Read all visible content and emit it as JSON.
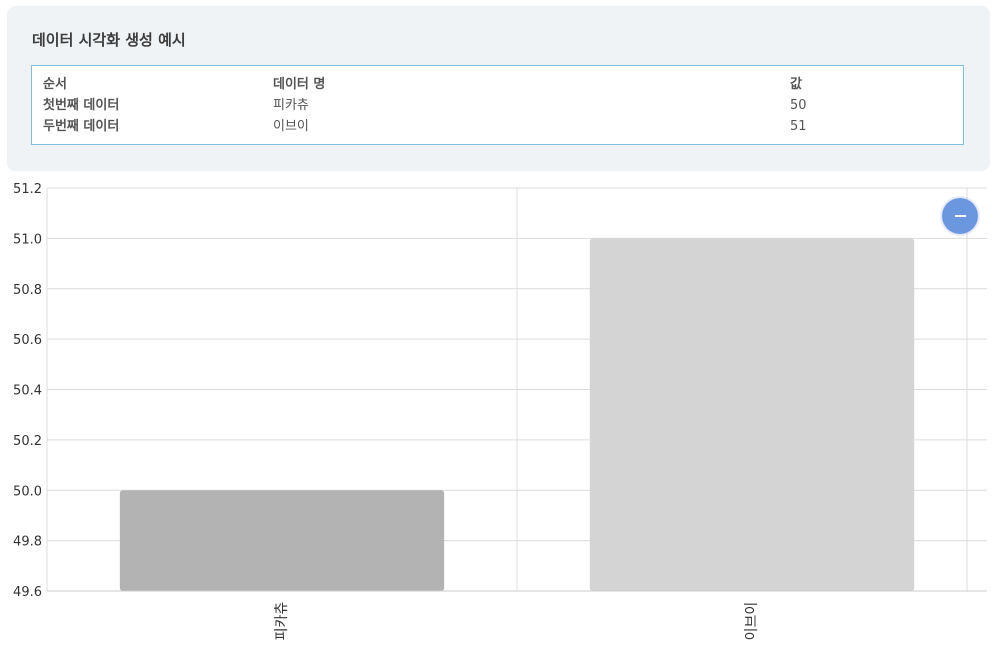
{
  "panel": {
    "title": "데이터 시각화 생성 예시",
    "table": {
      "headers": [
        "순서",
        "데이터 명",
        "값"
      ],
      "rows": [
        [
          "첫번째 데이터",
          "피카츄",
          "50"
        ],
        [
          "두번째 데이터",
          "이브이",
          "51"
        ]
      ]
    }
  },
  "fab": {
    "icon": "minus-icon"
  },
  "chart_data": {
    "type": "bar",
    "categories": [
      "피카츄",
      "이브이"
    ],
    "values": [
      50,
      51
    ],
    "ylim": [
      49.6,
      51.2
    ],
    "yticks": [
      "49.6",
      "49.8",
      "50.0",
      "50.2",
      "50.4",
      "50.6",
      "50.8",
      "51.0",
      "51.2"
    ],
    "colors": [
      "#b3b3b3",
      "#d4d4d4"
    ],
    "grid": true,
    "title": "",
    "xlabel": "",
    "ylabel": ""
  }
}
